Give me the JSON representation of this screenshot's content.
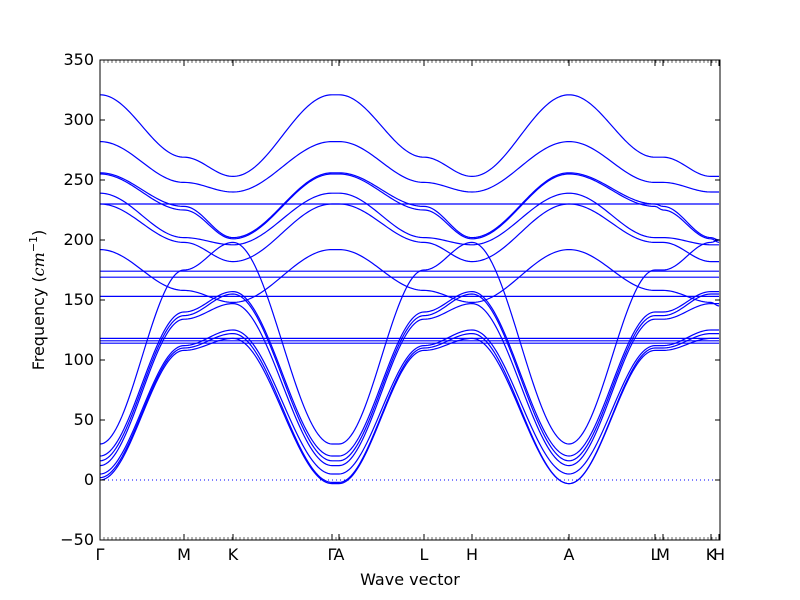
{
  "chart_data": {
    "type": "line",
    "xlabel": "Wave vector",
    "ylabel": {
      "text": "Frequency (",
      "unit": "cm",
      "exp": "−1",
      "close": ")"
    },
    "ylim": [
      -50,
      350
    ],
    "yticks": [
      -50,
      0,
      50,
      100,
      150,
      200,
      250,
      300,
      350
    ],
    "xlim": [
      0,
      620
    ],
    "high_symmetry_points": [
      {
        "label": "Γ",
        "x": 0
      },
      {
        "label": "M",
        "x": 84
      },
      {
        "label": "K",
        "x": 133
      },
      {
        "label": "Γ",
        "x": 232
      },
      {
        "label": "A",
        "x": 239
      },
      {
        "label": "L",
        "x": 324
      },
      {
        "label": "H",
        "x": 372
      },
      {
        "label": "A",
        "x": 469
      },
      {
        "label": "L",
        "x": 555
      },
      {
        "label": "M",
        "x": 563
      },
      {
        "label": "K",
        "x": 611
      },
      {
        "label": "H",
        "x": 619
      }
    ],
    "zero_line": true,
    "color": "#0000ff",
    "x": [
      0,
      84,
      133,
      232,
      239,
      324,
      372,
      469,
      555,
      563,
      611,
      619
    ],
    "series": [
      {
        "values": [
          321,
          269,
          253,
          321,
          321,
          269,
          253,
          321,
          269,
          269,
          253,
          253
        ]
      },
      {
        "values": [
          282,
          248,
          240,
          282,
          282,
          248,
          240,
          282,
          248,
          248,
          240,
          240
        ]
      },
      {
        "values": [
          256,
          228,
          202,
          256,
          256,
          228,
          202,
          256,
          230,
          228,
          202,
          200
        ]
      },
      {
        "values": [
          255,
          225,
          201,
          255,
          255,
          225,
          201,
          255,
          228,
          225,
          201,
          198
        ]
      },
      {
        "values": [
          239,
          202,
          196,
          239,
          239,
          202,
          196,
          239,
          202,
          202,
          196,
          196
        ]
      },
      {
        "values": [
          230,
          230,
          230,
          230,
          230,
          230,
          230,
          230,
          230,
          230,
          230,
          230
        ]
      },
      {
        "values": [
          230,
          198,
          182,
          230,
          230,
          198,
          182,
          230,
          198,
          198,
          182,
          182
        ]
      },
      {
        "values": [
          192,
          158,
          148,
          192,
          192,
          158,
          148,
          192,
          158,
          158,
          148,
          145
        ]
      },
      {
        "values": [
          30,
          175,
          198,
          30,
          30,
          175,
          198,
          30,
          175,
          175,
          198,
          200
        ]
      },
      {
        "values": [
          174,
          174,
          174,
          174,
          174,
          174,
          174,
          174,
          174,
          174,
          174,
          174
        ]
      },
      {
        "values": [
          169,
          169,
          169,
          169,
          169,
          169,
          169,
          169,
          169,
          169,
          169,
          169
        ]
      },
      {
        "values": [
          153,
          153,
          153,
          153,
          153,
          153,
          153,
          153,
          153,
          153,
          153,
          153
        ]
      },
      {
        "values": [
          20,
          140,
          157,
          20,
          20,
          140,
          157,
          20,
          140,
          140,
          157,
          157
        ]
      },
      {
        "values": [
          16,
          137,
          155,
          16,
          16,
          137,
          155,
          16,
          137,
          137,
          155,
          155
        ]
      },
      {
        "values": [
          12,
          134,
          147,
          12,
          12,
          134,
          147,
          12,
          134,
          134,
          147,
          147
        ]
      },
      {
        "values": [
          118,
          118,
          118,
          118,
          118,
          118,
          118,
          118,
          118,
          118,
          118,
          118
        ]
      },
      {
        "values": [
          116,
          116,
          116,
          116,
          116,
          116,
          116,
          116,
          116,
          116,
          116,
          116
        ]
      },
      {
        "values": [
          114,
          114,
          114,
          114,
          114,
          114,
          114,
          114,
          114,
          114,
          114,
          114
        ]
      },
      {
        "values": [
          5,
          112,
          125,
          5,
          5,
          112,
          125,
          5,
          112,
          112,
          125,
          125
        ]
      },
      {
        "values": [
          2,
          110,
          122,
          -2,
          -2,
          110,
          122,
          -3,
          110,
          110,
          122,
          122
        ]
      },
      {
        "values": [
          0,
          108,
          118,
          -3,
          -3,
          108,
          118,
          -3,
          108,
          108,
          118,
          118
        ]
      }
    ]
  }
}
